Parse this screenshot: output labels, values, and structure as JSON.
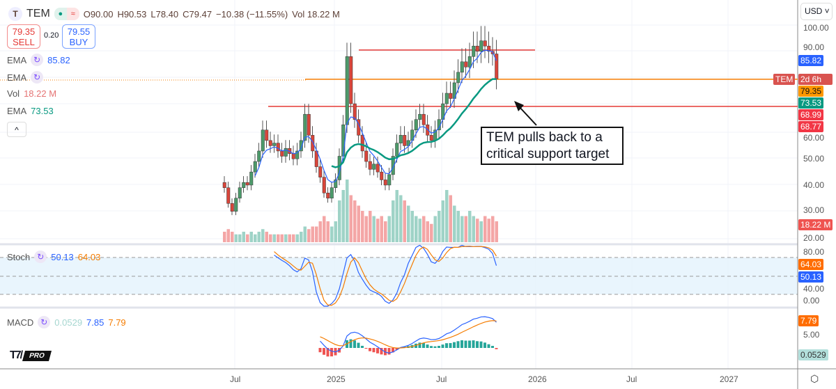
{
  "header": {
    "symbol": "TEM",
    "open": "O90.00",
    "high": "H90.53",
    "low": "L78.40",
    "close": "C79.47",
    "change": "−10.38 (−11.55%)",
    "vol_label": "Vol",
    "vol": "18.22 M"
  },
  "trade": {
    "sell_price": "79.35",
    "sell_label": "SELL",
    "spread": "0.20",
    "buy_price": "79.55",
    "buy_label": "BUY"
  },
  "indicators": {
    "ema1_label": "EMA",
    "ema1_value": "85.82",
    "ema2_label": "EMA",
    "vol_label": "Vol",
    "vol_value": "18.22 M",
    "ema3_label": "EMA",
    "ema3_value": "73.53",
    "stoch_label": "Stoch",
    "stoch_k": "50.13",
    "stoch_d": "64.03",
    "macd_label": "MACD",
    "macd_hist": "0.0529",
    "macd_line": "7.85",
    "macd_signal": "7.79"
  },
  "currency": "USD",
  "price_axis": [
    "100.00",
    "90.00",
    "60.00",
    "50.00",
    "40.00",
    "30.00",
    "20.00"
  ],
  "stoch_axis": [
    "80.00",
    "40.00",
    "0.00"
  ],
  "macd_axis": [
    "5.00"
  ],
  "tags": {
    "ema1": "85.82",
    "symbol_tag": "TEM",
    "countdown": "2d 6h",
    "last": "79.35",
    "ema3": "73.53",
    "line1": "68.99",
    "line2": "68.77",
    "vol": "18.22 M",
    "stoch_d": "64.03",
    "stoch_k": "50.13",
    "macd_signal": "7.79",
    "macd_hist": "0.0529"
  },
  "time_axis": [
    "Jul",
    "2025",
    "Jul",
    "2026",
    "Jul",
    "2027"
  ],
  "annotation": "TEM pulls back to a critical support target",
  "brand": "PRO",
  "colors": {
    "up": "#4c9a6a",
    "down": "#d9453a",
    "ema_fast": "#2962ff",
    "ema_slow": "#089981",
    "orange": "#f57c00",
    "red": "#e53935"
  },
  "chart_data": {
    "type": "candlestick",
    "interval": "weekly",
    "closes": [
      38,
      32,
      29,
      34,
      38,
      40,
      39,
      44,
      48,
      52,
      60,
      56,
      54,
      55,
      52,
      50,
      53,
      51,
      49,
      52,
      56,
      66,
      58,
      52,
      46,
      42,
      36,
      34,
      38,
      41,
      50,
      62,
      88,
      70,
      64,
      58,
      52,
      48,
      45,
      47,
      44,
      41,
      39,
      43,
      50,
      55,
      58,
      54,
      56,
      60,
      64,
      66,
      62,
      58,
      56,
      60,
      64,
      70,
      74,
      72,
      78,
      82,
      86,
      84,
      88,
      92,
      90,
      94,
      92,
      90,
      89,
      79.47
    ],
    "volumes": [
      2,
      2.5,
      2,
      1.5,
      1.5,
      2,
      1.5,
      2,
      1.5,
      2,
      2.5,
      2,
      1.5,
      1.5,
      1.5,
      1.5,
      1.5,
      1.5,
      1.5,
      1.5,
      2,
      3,
      2.5,
      3,
      3,
      4,
      5,
      4,
      3,
      4,
      8,
      10,
      12,
      9,
      8,
      7,
      6,
      5,
      6,
      5,
      4.5,
      5,
      4,
      5,
      8,
      10,
      9,
      8,
      7,
      6,
      5,
      4.5,
      5,
      4,
      3.5,
      5,
      6,
      8,
      10,
      9,
      7,
      6,
      5,
      5,
      6,
      5,
      4.5,
      4,
      5,
      4.5,
      5,
      4
    ],
    "levels": [
      90.5,
      79.35,
      68.99
    ]
  }
}
